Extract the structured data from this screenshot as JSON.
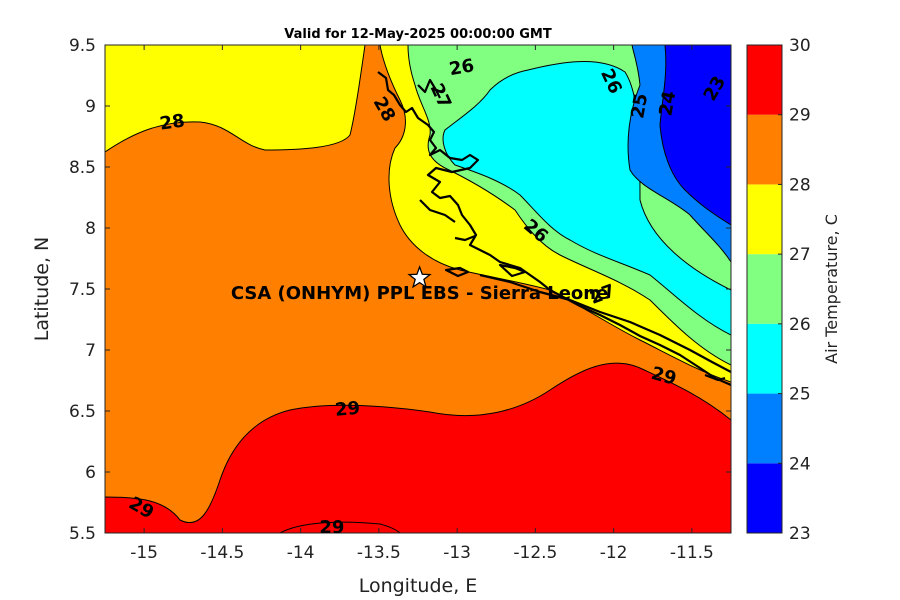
{
  "title": "Valid for 12-May-2025 00:00:00 GMT",
  "x_axis": {
    "label": "Longitude, E",
    "range": [
      -15.25,
      -11.25
    ],
    "ticks": [
      "-15",
      "-14.5",
      "-14",
      "-13.5",
      "-13",
      "-12.5",
      "-12",
      "-11.5"
    ]
  },
  "y_axis": {
    "label": "Latitude, N",
    "range": [
      5.5,
      9.5
    ],
    "ticks": [
      "5.5",
      "6",
      "6.5",
      "7",
      "7.5",
      "8",
      "8.5",
      "9",
      "9.5"
    ]
  },
  "colorbar": {
    "label": "Air Temperature, C",
    "levels": [
      "23",
      "24",
      "25",
      "26",
      "27",
      "28",
      "29",
      "30"
    ],
    "colors": [
      "#0000ff",
      "#0080ff",
      "#00ffff",
      "#80ff80",
      "#ffff00",
      "#ff8000",
      "#ff0000",
      "#800000"
    ]
  },
  "contour_labels": [
    {
      "text": "28",
      "lon": -14.82,
      "lat": 8.86,
      "angle": -8
    },
    {
      "text": "28",
      "lon": -13.47,
      "lat": 8.97,
      "angle": 60
    },
    {
      "text": "27",
      "lon": -13.11,
      "lat": 9.08,
      "angle": 65
    },
    {
      "text": "26",
      "lon": -12.97,
      "lat": 9.31,
      "angle": -10
    },
    {
      "text": "26",
      "lon": -12.02,
      "lat": 9.2,
      "angle": 65
    },
    {
      "text": "25",
      "lon": -11.83,
      "lat": 9.0,
      "angle": -80
    },
    {
      "text": "24",
      "lon": -11.65,
      "lat": 9.02,
      "angle": -80
    },
    {
      "text": "23",
      "lon": -11.35,
      "lat": 9.14,
      "angle": -60
    },
    {
      "text": "26",
      "lon": -12.5,
      "lat": 7.97,
      "angle": 40
    },
    {
      "text": "27",
      "lon": -12.07,
      "lat": 7.45,
      "angle": -20
    },
    {
      "text": "29",
      "lon": -11.68,
      "lat": 6.78,
      "angle": 15
    },
    {
      "text": "29",
      "lon": -13.7,
      "lat": 6.51,
      "angle": -5
    },
    {
      "text": "29",
      "lon": -15.02,
      "lat": 5.7,
      "angle": 30
    },
    {
      "text": "29",
      "lon": -13.8,
      "lat": 5.54,
      "angle": 0
    }
  ],
  "site": {
    "label": "CSA (ONHYM) PPL EBS  - Sierra Leone",
    "lon": -13.24,
    "lat": 7.59,
    "marker": "star-icon"
  }
}
